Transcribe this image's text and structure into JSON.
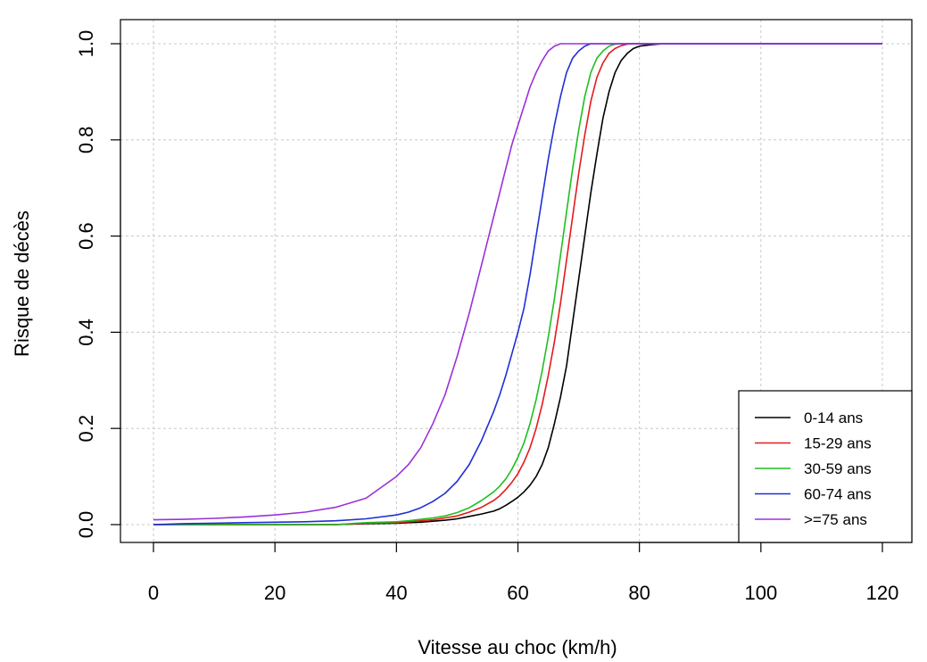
{
  "chart_data": {
    "type": "line",
    "title": "",
    "xlabel": "Vitesse au choc (km/h)",
    "ylabel": "Risque de décès",
    "xlim": [
      0,
      120
    ],
    "ylim": [
      0,
      1
    ],
    "xticks": [
      0,
      20,
      40,
      60,
      80,
      100,
      120
    ],
    "yticks": [
      0.0,
      0.2,
      0.4,
      0.6,
      0.8,
      1.0
    ],
    "xtick_labels": [
      "0",
      "20",
      "40",
      "60",
      "80",
      "100",
      "120"
    ],
    "ytick_labels": [
      "0.0",
      "0.2",
      "0.4",
      "0.6",
      "0.8",
      "1.0"
    ],
    "grid": true,
    "legend_position": "bottom-right",
    "x": [
      0,
      5,
      10,
      15,
      20,
      25,
      30,
      35,
      40,
      42,
      44,
      46,
      48,
      50,
      52,
      54,
      56,
      57,
      58,
      59,
      60,
      61,
      62,
      63,
      64,
      65,
      66,
      67,
      68,
      69,
      70,
      71,
      72,
      73,
      74,
      75,
      76,
      77,
      78,
      79,
      80,
      82,
      84,
      86,
      90,
      100,
      110,
      120
    ],
    "series": [
      {
        "name": "0-14 ans",
        "color": "#000000",
        "values": [
          0,
          0,
          0,
          0,
          0,
          0,
          0,
          0.002,
          0.003,
          0.004,
          0.005,
          0.007,
          0.009,
          0.012,
          0.017,
          0.022,
          0.028,
          0.033,
          0.04,
          0.048,
          0.057,
          0.068,
          0.082,
          0.1,
          0.125,
          0.16,
          0.21,
          0.265,
          0.33,
          0.42,
          0.51,
          0.6,
          0.69,
          0.77,
          0.845,
          0.9,
          0.94,
          0.965,
          0.98,
          0.99,
          0.995,
          0.998,
          1.0,
          1.0,
          1.0,
          1.0,
          1.0,
          1.0
        ]
      },
      {
        "name": "15-29 ans",
        "color": "#e41a1c",
        "values": [
          0,
          0,
          0,
          0,
          0,
          0,
          0,
          0.003,
          0.004,
          0.006,
          0.008,
          0.01,
          0.014,
          0.018,
          0.026,
          0.036,
          0.05,
          0.06,
          0.073,
          0.088,
          0.106,
          0.13,
          0.16,
          0.2,
          0.25,
          0.31,
          0.38,
          0.46,
          0.55,
          0.64,
          0.73,
          0.81,
          0.88,
          0.93,
          0.96,
          0.98,
          0.99,
          0.996,
          0.999,
          1.0,
          1.0,
          1.0,
          1.0,
          1.0,
          1.0,
          1.0,
          1.0,
          1.0
        ]
      },
      {
        "name": "30-59 ans",
        "color": "#1fbf1f",
        "values": [
          0,
          0,
          0,
          0,
          0,
          0,
          0,
          0.004,
          0.006,
          0.008,
          0.011,
          0.014,
          0.018,
          0.025,
          0.035,
          0.05,
          0.068,
          0.08,
          0.095,
          0.115,
          0.14,
          0.17,
          0.21,
          0.26,
          0.32,
          0.39,
          0.47,
          0.56,
          0.65,
          0.74,
          0.82,
          0.89,
          0.94,
          0.97,
          0.985,
          0.995,
          0.999,
          1.0,
          1.0,
          1.0,
          1.0,
          1.0,
          1.0,
          1.0,
          1.0,
          1.0,
          1.0,
          1.0
        ]
      },
      {
        "name": "60-74 ans",
        "color": "#1f2fd6",
        "values": [
          0,
          0.002,
          0.003,
          0.004,
          0.005,
          0.006,
          0.008,
          0.012,
          0.02,
          0.026,
          0.035,
          0.048,
          0.065,
          0.09,
          0.125,
          0.175,
          0.235,
          0.27,
          0.31,
          0.355,
          0.4,
          0.45,
          0.52,
          0.6,
          0.68,
          0.76,
          0.83,
          0.89,
          0.94,
          0.97,
          0.985,
          0.995,
          1.0,
          1.0,
          1.0,
          1.0,
          1.0,
          1.0,
          1.0,
          1.0,
          1.0,
          1.0,
          1.0,
          1.0,
          1.0,
          1.0,
          1.0,
          1.0
        ]
      },
      {
        "name": ">=75 ans",
        "color": "#9b30d9",
        "values": [
          0.01,
          0.011,
          0.013,
          0.016,
          0.02,
          0.026,
          0.036,
          0.055,
          0.1,
          0.125,
          0.16,
          0.21,
          0.27,
          0.35,
          0.44,
          0.54,
          0.64,
          0.69,
          0.74,
          0.79,
          0.83,
          0.87,
          0.91,
          0.94,
          0.965,
          0.985,
          0.995,
          1.0,
          1.0,
          1.0,
          1.0,
          1.0,
          1.0,
          1.0,
          1.0,
          1.0,
          1.0,
          1.0,
          1.0,
          1.0,
          1.0,
          1.0,
          1.0,
          1.0,
          1.0,
          1.0,
          1.0,
          1.0
        ]
      }
    ]
  }
}
